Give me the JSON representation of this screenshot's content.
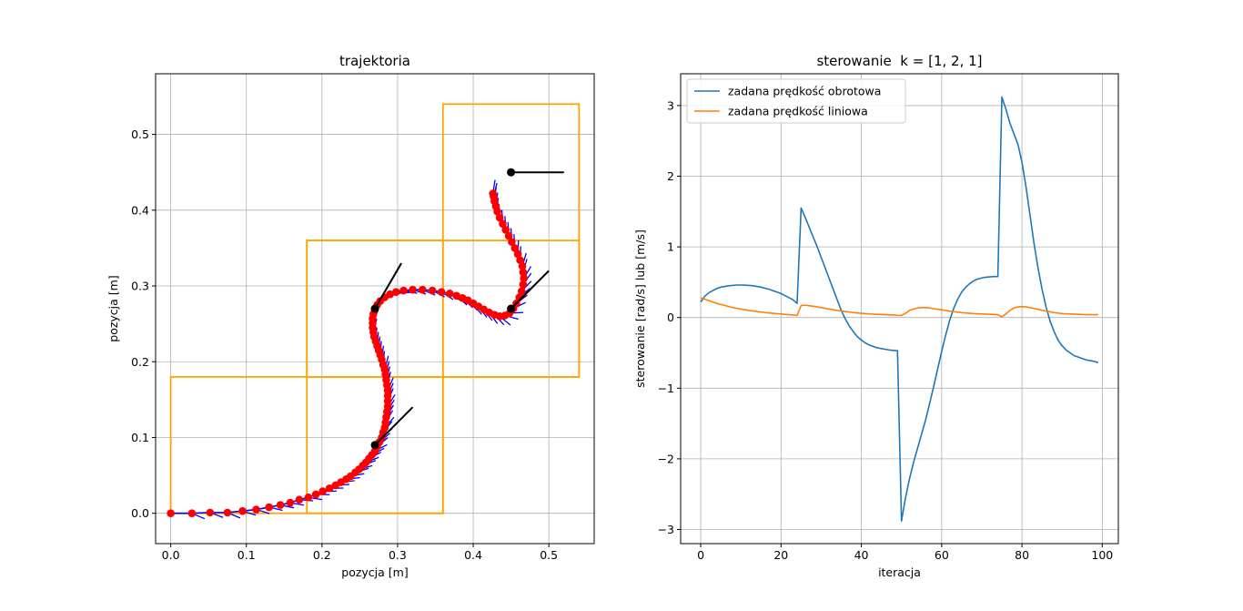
{
  "chart_data": [
    {
      "type": "scatter",
      "title": "trajektoria",
      "xlabel": "pozycja [m]",
      "ylabel": "pozycja [m]",
      "xlim": [
        -0.02,
        0.56
      ],
      "ylim": [
        -0.04,
        0.58
      ],
      "xticks": [
        0.0,
        0.1,
        0.2,
        0.3,
        0.4,
        0.5
      ],
      "xtick_labels": [
        "0.0",
        "0.1",
        "0.2",
        "0.3",
        "0.4",
        "0.5"
      ],
      "yticks": [
        0.0,
        0.1,
        0.2,
        0.3,
        0.4,
        0.5
      ],
      "ytick_labels": [
        "0.0",
        "0.1",
        "0.2",
        "0.3",
        "0.4",
        "0.5"
      ],
      "grid": true,
      "colors": {
        "rectangles": "#ffa500",
        "trajectory": "#0000ff",
        "points": "#ff0000",
        "waypoints": "#000000"
      },
      "rectangles": [
        {
          "x0": 0.0,
          "y0": 0.0,
          "x1": 0.36,
          "y1": 0.18
        },
        {
          "x0": 0.18,
          "y0": 0.0,
          "x1": 0.36,
          "y1": 0.36
        },
        {
          "x0": 0.18,
          "y0": 0.18,
          "x1": 0.54,
          "y1": 0.36
        },
        {
          "x0": 0.36,
          "y0": 0.18,
          "x1": 0.54,
          "y1": 0.54
        }
      ],
      "trajectory": [
        [
          0.0,
          0.0
        ],
        [
          0.028,
          0.0
        ],
        [
          0.052,
          0.001
        ],
        [
          0.075,
          0.001
        ],
        [
          0.095,
          0.003
        ],
        [
          0.113,
          0.005
        ],
        [
          0.13,
          0.008
        ],
        [
          0.145,
          0.011
        ],
        [
          0.158,
          0.014
        ],
        [
          0.17,
          0.018
        ],
        [
          0.182,
          0.021
        ],
        [
          0.192,
          0.025
        ],
        [
          0.201,
          0.029
        ],
        [
          0.21,
          0.033
        ],
        [
          0.218,
          0.037
        ],
        [
          0.225,
          0.041
        ],
        [
          0.232,
          0.045
        ],
        [
          0.238,
          0.049
        ],
        [
          0.244,
          0.054
        ],
        [
          0.249,
          0.058
        ],
        [
          0.254,
          0.063
        ],
        [
          0.258,
          0.067
        ],
        [
          0.262,
          0.072
        ],
        [
          0.266,
          0.077
        ],
        [
          0.27,
          0.082
        ],
        [
          0.273,
          0.088
        ],
        [
          0.276,
          0.094
        ],
        [
          0.279,
          0.1
        ],
        [
          0.281,
          0.107
        ],
        [
          0.283,
          0.113
        ],
        [
          0.284,
          0.12
        ],
        [
          0.285,
          0.127
        ],
        [
          0.286,
          0.134
        ],
        [
          0.287,
          0.141
        ],
        [
          0.287,
          0.148
        ],
        [
          0.287,
          0.155
        ],
        [
          0.287,
          0.162
        ],
        [
          0.286,
          0.169
        ],
        [
          0.285,
          0.176
        ],
        [
          0.284,
          0.183
        ],
        [
          0.283,
          0.19
        ],
        [
          0.281,
          0.196
        ],
        [
          0.279,
          0.203
        ],
        [
          0.277,
          0.209
        ],
        [
          0.275,
          0.215
        ],
        [
          0.273,
          0.221
        ],
        [
          0.271,
          0.227
        ],
        [
          0.269,
          0.233
        ],
        [
          0.268,
          0.239
        ],
        [
          0.267,
          0.245
        ],
        [
          0.267,
          0.251
        ],
        [
          0.267,
          0.257
        ],
        [
          0.268,
          0.263
        ],
        [
          0.27,
          0.269
        ],
        [
          0.273,
          0.275
        ],
        [
          0.277,
          0.28
        ],
        [
          0.283,
          0.285
        ],
        [
          0.29,
          0.289
        ],
        [
          0.298,
          0.292
        ],
        [
          0.308,
          0.294
        ],
        [
          0.32,
          0.295
        ],
        [
          0.333,
          0.295
        ],
        [
          0.346,
          0.294
        ],
        [
          0.358,
          0.292
        ],
        [
          0.369,
          0.29
        ],
        [
          0.378,
          0.287
        ],
        [
          0.386,
          0.284
        ],
        [
          0.393,
          0.281
        ],
        [
          0.4,
          0.277
        ],
        [
          0.407,
          0.273
        ],
        [
          0.414,
          0.269
        ],
        [
          0.421,
          0.265
        ],
        [
          0.428,
          0.262
        ],
        [
          0.435,
          0.26
        ],
        [
          0.442,
          0.261
        ],
        [
          0.448,
          0.264
        ],
        [
          0.453,
          0.27
        ],
        [
          0.457,
          0.277
        ],
        [
          0.461,
          0.285
        ],
        [
          0.464,
          0.293
        ],
        [
          0.466,
          0.302
        ],
        [
          0.467,
          0.31
        ],
        [
          0.466,
          0.318
        ],
        [
          0.465,
          0.326
        ],
        [
          0.462,
          0.334
        ],
        [
          0.459,
          0.342
        ],
        [
          0.455,
          0.35
        ],
        [
          0.451,
          0.358
        ],
        [
          0.447,
          0.366
        ],
        [
          0.443,
          0.374
        ],
        [
          0.439,
          0.382
        ],
        [
          0.435,
          0.39
        ],
        [
          0.432,
          0.398
        ],
        [
          0.43,
          0.405
        ],
        [
          0.428,
          0.412
        ],
        [
          0.427,
          0.418
        ],
        [
          0.426,
          0.422
        ]
      ],
      "waypoints": [
        {
          "x": 0.27,
          "y": 0.09,
          "dx": 0.05,
          "dy": 0.05
        },
        {
          "x": 0.27,
          "y": 0.27,
          "dx": 0.035,
          "dy": 0.06
        },
        {
          "x": 0.45,
          "y": 0.27,
          "dx": 0.05,
          "dy": 0.05
        },
        {
          "x": 0.45,
          "y": 0.45,
          "dx": 0.07,
          "dy": 0.0
        }
      ]
    },
    {
      "type": "line",
      "title": "sterowanie  k = [1, 2, 1]",
      "xlabel": "iteracja",
      "ylabel": "sterowanie [rad/s] lub [m/s]",
      "xlim": [
        -5,
        104
      ],
      "ylim": [
        -3.2,
        3.45
      ],
      "xticks": [
        0,
        20,
        40,
        60,
        80,
        100
      ],
      "xtick_labels": [
        "0",
        "20",
        "40",
        "60",
        "80",
        "100"
      ],
      "yticks": [
        -3,
        -2,
        -1,
        0,
        1,
        2,
        3
      ],
      "ytick_labels": [
        "−3",
        "−2",
        "−1",
        "0",
        "1",
        "2",
        "3"
      ],
      "grid": true,
      "legend": "top-left",
      "series": [
        {
          "name": "zadana prędkość obrotowa",
          "color": "#1f77b4",
          "points": [
            [
              0,
              0.22
            ],
            [
              1,
              0.3
            ],
            [
              2,
              0.35
            ],
            [
              3,
              0.38
            ],
            [
              4,
              0.41
            ],
            [
              5,
              0.43
            ],
            [
              6,
              0.44
            ],
            [
              7,
              0.45
            ],
            [
              8,
              0.455
            ],
            [
              9,
              0.46
            ],
            [
              10,
              0.46
            ],
            [
              11,
              0.458
            ],
            [
              12,
              0.455
            ],
            [
              13,
              0.45
            ],
            [
              14,
              0.44
            ],
            [
              15,
              0.43
            ],
            [
              16,
              0.415
            ],
            [
              17,
              0.4
            ],
            [
              18,
              0.38
            ],
            [
              19,
              0.36
            ],
            [
              20,
              0.34
            ],
            [
              21,
              0.31
            ],
            [
              22,
              0.28
            ],
            [
              23,
              0.25
            ],
            [
              24,
              0.2
            ],
            [
              25,
              1.55
            ],
            [
              26,
              1.42
            ],
            [
              27,
              1.28
            ],
            [
              28,
              1.14
            ],
            [
              29,
              1.0
            ],
            [
              30,
              0.85
            ],
            [
              31,
              0.7
            ],
            [
              32,
              0.55
            ],
            [
              33,
              0.4
            ],
            [
              34,
              0.25
            ],
            [
              35,
              0.1
            ],
            [
              36,
              -0.02
            ],
            [
              37,
              -0.12
            ],
            [
              38,
              -0.2
            ],
            [
              39,
              -0.27
            ],
            [
              40,
              -0.32
            ],
            [
              41,
              -0.36
            ],
            [
              42,
              -0.39
            ],
            [
              43,
              -0.41
            ],
            [
              44,
              -0.43
            ],
            [
              45,
              -0.44
            ],
            [
              46,
              -0.45
            ],
            [
              47,
              -0.46
            ],
            [
              48,
              -0.465
            ],
            [
              49,
              -0.47
            ],
            [
              50,
              -2.88
            ],
            [
              51,
              -2.55
            ],
            [
              52,
              -2.28
            ],
            [
              53,
              -2.05
            ],
            [
              54,
              -1.85
            ],
            [
              55,
              -1.65
            ],
            [
              56,
              -1.45
            ],
            [
              57,
              -1.22
            ],
            [
              58,
              -0.98
            ],
            [
              59,
              -0.73
            ],
            [
              60,
              -0.48
            ],
            [
              61,
              -0.25
            ],
            [
              62,
              -0.04
            ],
            [
              63,
              0.13
            ],
            [
              64,
              0.26
            ],
            [
              65,
              0.36
            ],
            [
              66,
              0.43
            ],
            [
              67,
              0.48
            ],
            [
              68,
              0.52
            ],
            [
              69,
              0.545
            ],
            [
              70,
              0.56
            ],
            [
              71,
              0.57
            ],
            [
              72,
              0.575
            ],
            [
              73,
              0.58
            ],
            [
              74,
              0.58
            ],
            [
              75,
              3.12
            ],
            [
              76,
              2.95
            ],
            [
              77,
              2.75
            ],
            [
              78,
              2.6
            ],
            [
              79,
              2.45
            ],
            [
              80,
              2.2
            ],
            [
              81,
              1.85
            ],
            [
              82,
              1.45
            ],
            [
              83,
              1.05
            ],
            [
              84,
              0.7
            ],
            [
              85,
              0.4
            ],
            [
              86,
              0.15
            ],
            [
              87,
              -0.05
            ],
            [
              88,
              -0.2
            ],
            [
              89,
              -0.32
            ],
            [
              90,
              -0.4
            ],
            [
              91,
              -0.46
            ],
            [
              92,
              -0.5
            ],
            [
              93,
              -0.54
            ],
            [
              94,
              -0.56
            ],
            [
              95,
              -0.58
            ],
            [
              96,
              -0.6
            ],
            [
              97,
              -0.61
            ],
            [
              98,
              -0.62
            ],
            [
              99,
              -0.64
            ]
          ]
        },
        {
          "name": "zadana prędkość liniowa",
          "color": "#ff7f0e",
          "points": [
            [
              0,
              0.28
            ],
            [
              2,
              0.24
            ],
            [
              4,
              0.2
            ],
            [
              6,
              0.17
            ],
            [
              8,
              0.14
            ],
            [
              10,
              0.12
            ],
            [
              12,
              0.1
            ],
            [
              14,
              0.085
            ],
            [
              16,
              0.07
            ],
            [
              18,
              0.06
            ],
            [
              20,
              0.05
            ],
            [
              22,
              0.04
            ],
            [
              24,
              0.03
            ],
            [
              25,
              0.17
            ],
            [
              26,
              0.175
            ],
            [
              28,
              0.16
            ],
            [
              30,
              0.14
            ],
            [
              32,
              0.12
            ],
            [
              34,
              0.1
            ],
            [
              36,
              0.085
            ],
            [
              38,
              0.07
            ],
            [
              40,
              0.06
            ],
            [
              42,
              0.05
            ],
            [
              44,
              0.045
            ],
            [
              46,
              0.04
            ],
            [
              48,
              0.035
            ],
            [
              49,
              0.03
            ],
            [
              50,
              0.03
            ],
            [
              51,
              0.06
            ],
            [
              52,
              0.1
            ],
            [
              53,
              0.12
            ],
            [
              54,
              0.135
            ],
            [
              55,
              0.14
            ],
            [
              56,
              0.14
            ],
            [
              57,
              0.135
            ],
            [
              58,
              0.125
            ],
            [
              60,
              0.11
            ],
            [
              62,
              0.09
            ],
            [
              64,
              0.075
            ],
            [
              66,
              0.065
            ],
            [
              68,
              0.055
            ],
            [
              70,
              0.05
            ],
            [
              72,
              0.045
            ],
            [
              74,
              0.04
            ],
            [
              75,
              0.01
            ],
            [
              76,
              0.05
            ],
            [
              77,
              0.1
            ],
            [
              78,
              0.135
            ],
            [
              79,
              0.15
            ],
            [
              80,
              0.155
            ],
            [
              81,
              0.15
            ],
            [
              82,
              0.14
            ],
            [
              84,
              0.115
            ],
            [
              86,
              0.09
            ],
            [
              88,
              0.07
            ],
            [
              90,
              0.055
            ],
            [
              92,
              0.05
            ],
            [
              94,
              0.045
            ],
            [
              96,
              0.04
            ],
            [
              98,
              0.04
            ],
            [
              99,
              0.04
            ]
          ]
        }
      ]
    }
  ]
}
